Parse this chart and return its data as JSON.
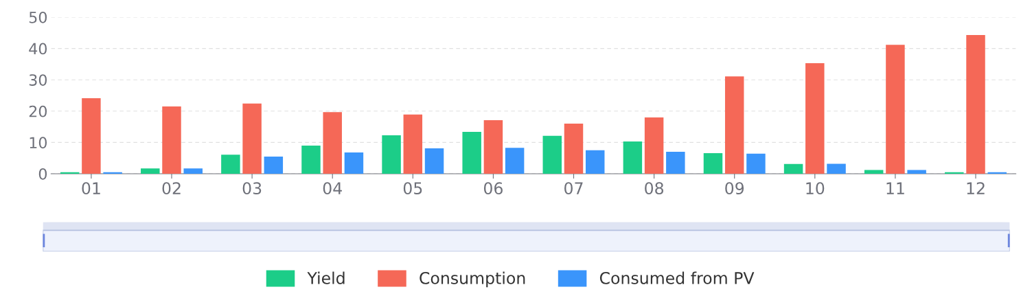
{
  "chart_data": {
    "type": "bar",
    "categories": [
      "01",
      "02",
      "03",
      "04",
      "05",
      "06",
      "07",
      "08",
      "09",
      "10",
      "11",
      "12"
    ],
    "series": [
      {
        "name": "Yield",
        "color": "#1ccd88",
        "values": [
          0.5,
          1.7,
          6.1,
          9.0,
          12.3,
          13.4,
          12.1,
          10.3,
          6.6,
          3.1,
          1.2,
          0.5
        ]
      },
      {
        "name": "Consumption",
        "color": "#f56857",
        "values": [
          24.1,
          21.5,
          22.4,
          19.7,
          18.9,
          17.1,
          16.0,
          18.0,
          31.1,
          35.3,
          41.2,
          44.3
        ]
      },
      {
        "name": "Consumed from PV",
        "color": "#3a95fb",
        "values": [
          0.5,
          1.7,
          5.5,
          6.8,
          8.1,
          8.3,
          7.5,
          7.0,
          6.4,
          3.2,
          1.2,
          0.5
        ]
      }
    ],
    "ylim": [
      0,
      50
    ],
    "yticks": [
      0,
      10,
      20,
      30,
      40,
      50
    ],
    "grid": "y",
    "legend": "bottom"
  }
}
